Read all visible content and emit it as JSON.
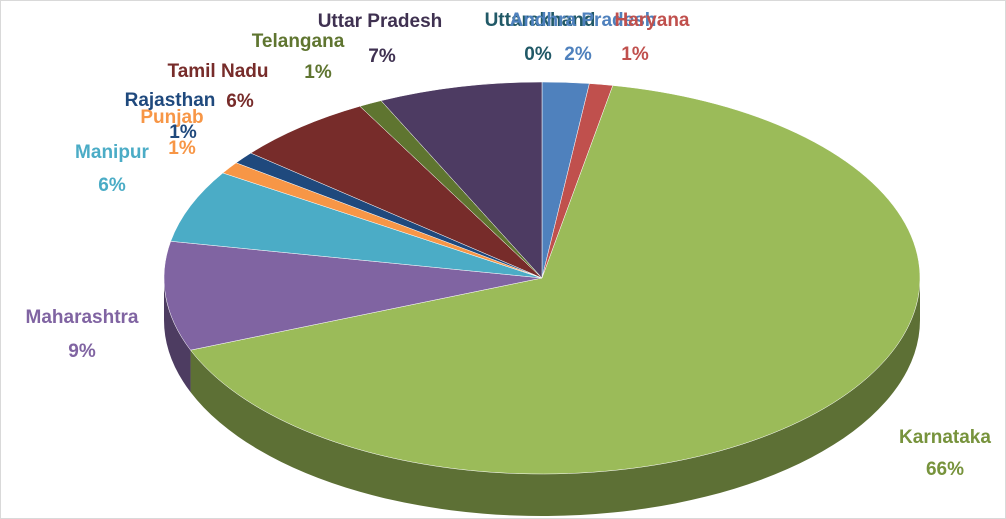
{
  "chart_data": {
    "type": "pie",
    "categories": [
      "Uttarakhand",
      "Andhra Pradesh",
      "Haryana",
      "Karnataka",
      "Maharashtra",
      "Manipur",
      "Punjab",
      "Rajasthan",
      "Tamil Nadu",
      "Telangana",
      "Uttar Pradesh"
    ],
    "values": [
      0,
      2,
      1,
      66,
      9,
      6,
      1,
      1,
      6,
      1,
      7
    ],
    "value_labels": [
      "0%",
      "2%",
      "1%",
      "66%",
      "9%",
      "6%",
      "1%",
      "1%",
      "6%",
      "1%",
      "7%"
    ],
    "colors": [
      "#31859c",
      "#4f81bd",
      "#c0504d",
      "#9bbb59",
      "#8064a2",
      "#4bacc6",
      "#f79646",
      "#1f497d",
      "#772c2a",
      "#5f7530",
      "#4d3b62"
    ],
    "label_colors": [
      "#215967",
      "#4f81bd",
      "#c0504d",
      "#77933c",
      "#8064a2",
      "#4bacc6",
      "#f79646",
      "#1f497d",
      "#772c2a",
      "#5f7530",
      "#3f3151"
    ]
  }
}
